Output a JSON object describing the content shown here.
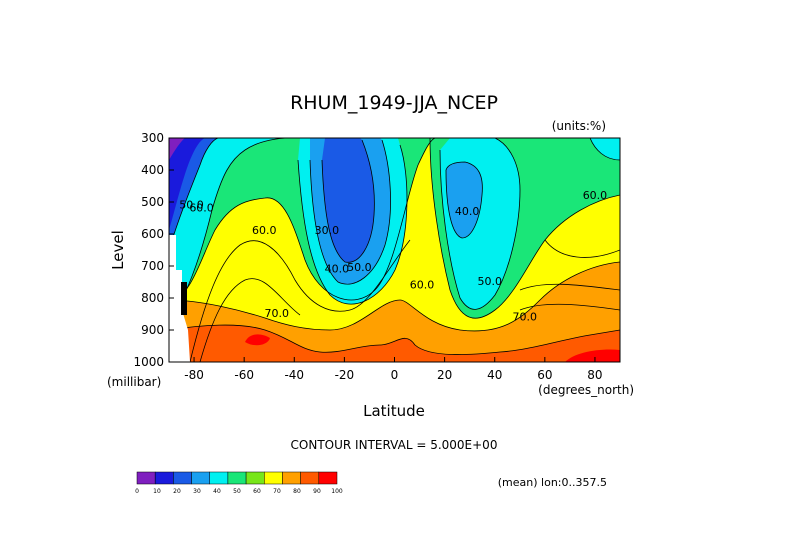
{
  "chart_data": {
    "type": "heatmap",
    "title": "RHUM_1949-JJA_NCEP",
    "units_label": "(units:%)",
    "xlabel": "Latitude",
    "ylabel": "Level",
    "x_units": "(degrees_north)",
    "y_units": "(millibar)",
    "xlim": [
      -90,
      90
    ],
    "ylim": [
      1000,
      300
    ],
    "x_ticks": [
      "-80",
      "-60",
      "-40",
      "-20",
      "0",
      "20",
      "40",
      "60",
      "80"
    ],
    "x_tick_values": [
      -80,
      -60,
      -40,
      -20,
      0,
      20,
      40,
      60,
      80
    ],
    "y_ticks": [
      "300",
      "400",
      "500",
      "600",
      "700",
      "800",
      "900",
      "1000"
    ],
    "y_tick_values": [
      300,
      400,
      500,
      600,
      700,
      800,
      900,
      1000
    ],
    "contour_interval_label": "CONTOUR INTERVAL = 5.000E+00",
    "footer_label": "(mean) lon:0..357.5",
    "contour_labels": [
      {
        "text": "50.0",
        "x": -81,
        "y": 520
      },
      {
        "text": "60.0",
        "x": -77,
        "y": 530
      },
      {
        "text": "60.0",
        "x": -52,
        "y": 600
      },
      {
        "text": "70.0",
        "x": -47,
        "y": 860
      },
      {
        "text": "30.0",
        "x": -27,
        "y": 600
      },
      {
        "text": "40.0",
        "x": -23,
        "y": 720
      },
      {
        "text": "50.0",
        "x": -14,
        "y": 715
      },
      {
        "text": "60.0",
        "x": 11,
        "y": 770
      },
      {
        "text": "40.0",
        "x": 29,
        "y": 540
      },
      {
        "text": "50.0",
        "x": 38,
        "y": 760
      },
      {
        "text": "70.0",
        "x": 52,
        "y": 870
      },
      {
        "text": "60.0",
        "x": 80,
        "y": 490
      }
    ],
    "colorbar": {
      "ticks": [
        "0",
        "10",
        "20",
        "30",
        "40",
        "50",
        "60",
        "70",
        "80",
        "90",
        "100"
      ],
      "colors": [
        "#7f1fbf",
        "#1a1adc",
        "#1a5ae6",
        "#1aa0f0",
        "#00f0f0",
        "#1ae678",
        "#78e61a",
        "#ffff00",
        "#ffa000",
        "#ff5a00",
        "#ff0000"
      ]
    }
  }
}
